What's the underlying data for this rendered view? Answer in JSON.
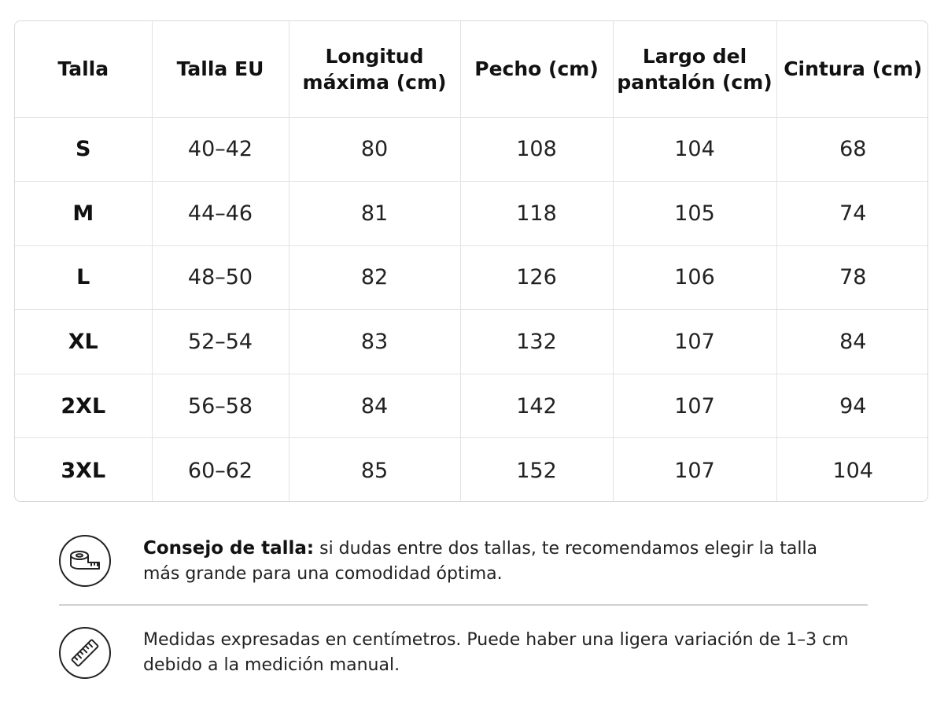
{
  "table": {
    "headers": [
      "Talla",
      "Talla EU",
      "Longitud\nmáxima (cm)",
      "Pecho (cm)",
      "Largo del\npantalón (cm)",
      "Cintura (cm)"
    ],
    "rows": [
      [
        "S",
        "40–42",
        "80",
        "108",
        "104",
        "68"
      ],
      [
        "M",
        "44–46",
        "81",
        "118",
        "105",
        "74"
      ],
      [
        "L",
        "48–50",
        "82",
        "126",
        "106",
        "78"
      ],
      [
        "XL",
        "52–54",
        "83",
        "132",
        "107",
        "84"
      ],
      [
        "2XL",
        "56–58",
        "84",
        "142",
        "107",
        "94"
      ],
      [
        "3XL",
        "60–62",
        "85",
        "152",
        "107",
        "104"
      ]
    ]
  },
  "tip": {
    "icon": "measuring-tape-icon",
    "title": "Consejo de talla:",
    "text": " si dudas entre dos tallas, te recomendamos elegir la talla más grande para una comodidad óptima."
  },
  "note": {
    "icon": "ruler-icon",
    "text": "Medidas expresadas en centímetros. Puede haber una ligera variación de 1–3 cm debido a la medición manual."
  },
  "colors": {
    "border": "#d9d9d9",
    "text": "#111111",
    "divider": "#d0d0d0"
  }
}
